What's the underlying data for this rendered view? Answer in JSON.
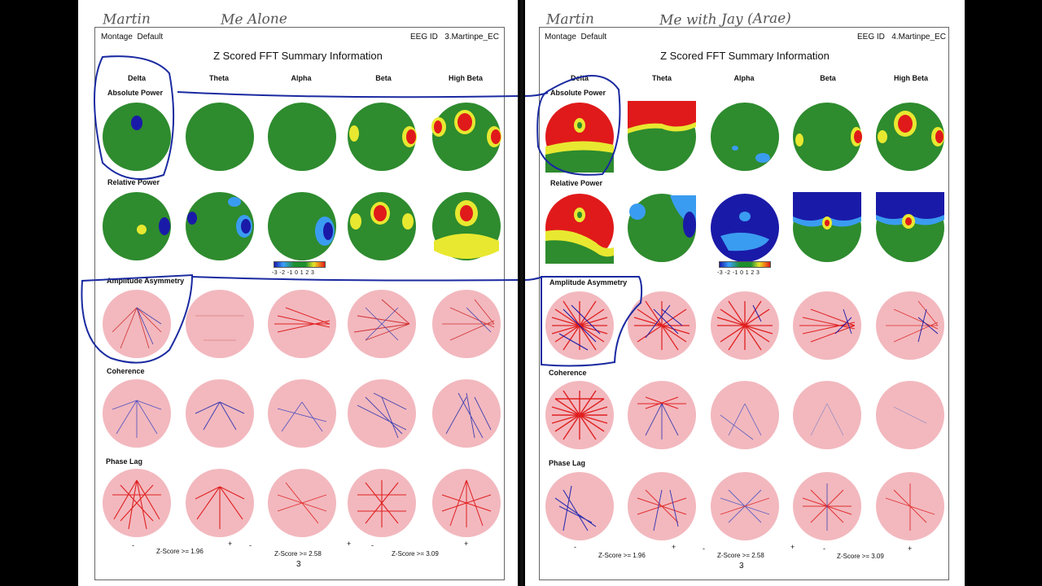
{
  "left": {
    "handwritten_name": "Martin",
    "handwritten_condition": "Me Alone",
    "montage_label": "Montage",
    "montage_value": "Default",
    "eeg_id_label": "EEG ID",
    "eeg_id_value": "3.Martinpe_EC",
    "title": "Z Scored FFT Summary Information",
    "bands": [
      "Delta",
      "Theta",
      "Alpha",
      "Beta",
      "High Beta"
    ],
    "sections": {
      "absolute_power": "Absolute Power",
      "relative_power": "Relative Power",
      "amplitude_asymmetry": "Amplitude Asymmetry",
      "coherence": "Coherence",
      "phase_lag": "Phase Lag"
    },
    "scale_ticks": "-3 -2 -1  0  1  2  3",
    "z_scores": [
      "Z-Score >= 1.96",
      "Z-Score >= 2.58",
      "Z-Score >= 3.09"
    ],
    "signs": [
      "-",
      "+",
      "-",
      "+",
      "-",
      "+"
    ],
    "page_number": "3"
  },
  "right": {
    "handwritten_name": "Martin",
    "handwritten_condition": "Me with Jay (Arae)",
    "montage_label": "Montage",
    "montage_value": "Default",
    "eeg_id_label": "EEG ID",
    "eeg_id_value": "4.Martinpe_EC",
    "title": "Z Scored FFT Summary Information",
    "bands": [
      "Delta",
      "Theta",
      "Alpha",
      "Beta",
      "High Beta"
    ],
    "sections": {
      "absolute_power": "Absolute Power",
      "relative_power": "Relative Power",
      "amplitude_asymmetry": "Amplitude Asymmetry",
      "coherence": "Coherence",
      "phase_lag": "Phase Lag"
    },
    "scale_ticks": "-3 -2 -1  0  1  2  3",
    "z_scores": [
      "Z-Score >= 1.96",
      "Z-Score >= 2.58",
      "Z-Score >= 3.09"
    ],
    "signs": [
      "-",
      "+",
      "-",
      "+",
      "-",
      "+"
    ],
    "page_number": "3"
  },
  "colors": {
    "normal": "#2e8b2e",
    "high": "#e01a1a",
    "elevated": "#e8e830",
    "low": "#1a1aa8",
    "lowish": "#3a9cf0",
    "connectivity_bg": "#f2b8be",
    "annotation_pen": "#1a2aa0"
  }
}
